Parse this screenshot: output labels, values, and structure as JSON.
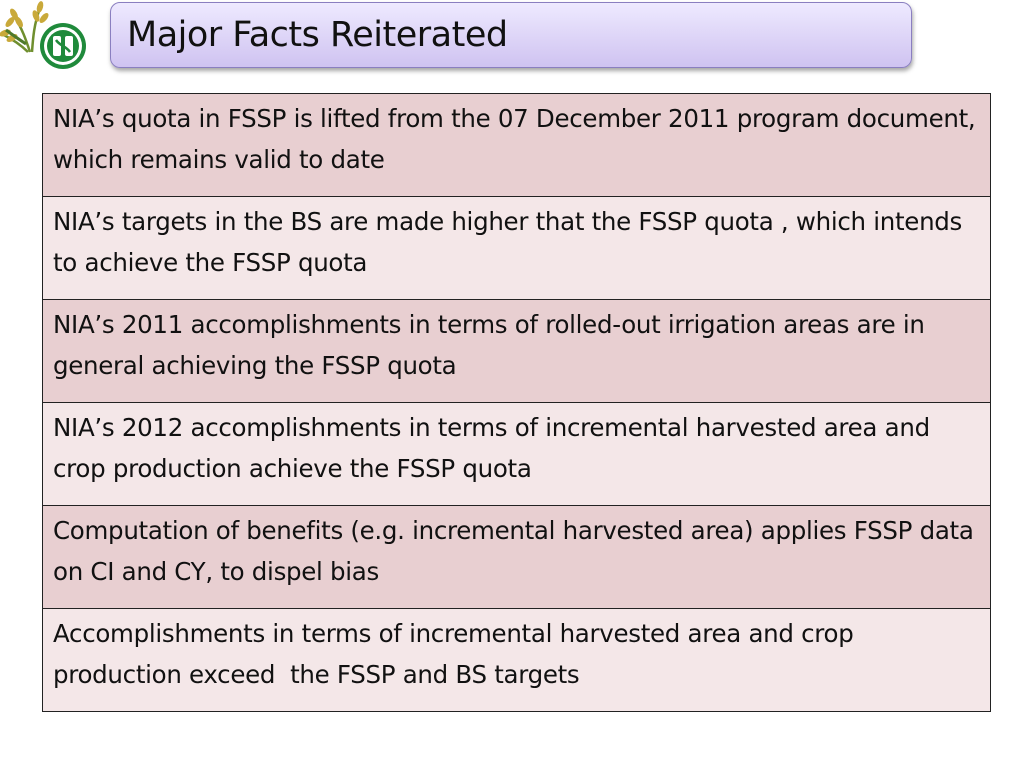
{
  "slide": {
    "title": "Major Facts Reiterated",
    "facts": [
      "NIA’s quota in FSSP is lifted from the 07 December 2011 program document, which remains valid to date",
      "NIA’s targets in the BS are made higher that the FSSP quota , which intends to achieve the FSSP quota",
      "NIA’s 2011 accomplishments in terms of rolled-out irrigation areas are in general achieving the FSSP quota",
      "NIA’s 2012 accomplishments in terms of incremental harvested area and crop production achieve the FSSP quota",
      "Computation of benefits (e.g. incremental harvested area) applies FSSP data on CI and CY, to dispel bias",
      "Accomplishments in terms of incremental harvested area and crop production exceed  the FSSP and BS targets"
    ]
  },
  "logos": {
    "left": "wheat-emblem-icon",
    "right": "nia-seal-icon",
    "colors": {
      "wheat": "#c9a93a",
      "wheat_leaf": "#6f8f2e",
      "seal_green": "#1f8a3b"
    }
  },
  "colors": {
    "title_fill": "#ddd4f7",
    "title_border": "#8a7fc0",
    "row_dark": "#e8cfd1",
    "row_light": "#f4e7e8",
    "border": "#222222"
  }
}
